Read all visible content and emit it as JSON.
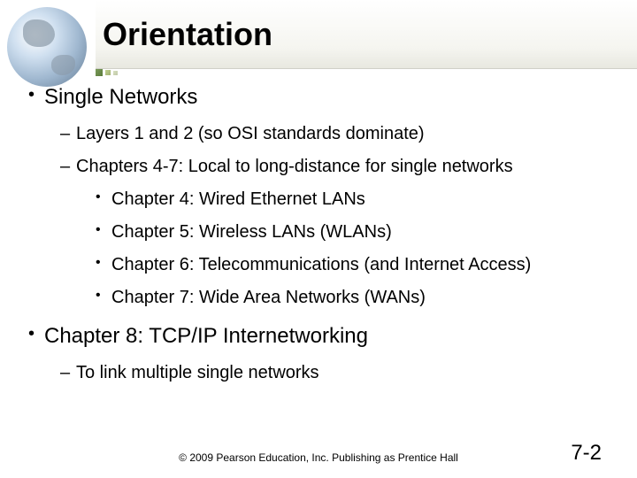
{
  "title": "Orientation",
  "bullets": {
    "l1_a": "Single Networks",
    "l2_a": "Layers 1 and 2 (so OSI standards dominate)",
    "l2_b": "Chapters 4-7: Local to long-distance for single networks",
    "l3_a": "Chapter 4: Wired Ethernet LANs",
    "l3_b": "Chapter 5: Wireless LANs (WLANs)",
    "l3_c": "Chapter 6: Telecommunications (and Internet Access)",
    "l3_d": "Chapter 7: Wide Area Networks (WANs)",
    "l1_b": "Chapter 8: TCP/IP Internetworking",
    "l2_c": "To link multiple single networks"
  },
  "footer": "© 2009 Pearson Education, Inc.  Publishing as Prentice Hall",
  "pageNumber": "7-2",
  "colors": {
    "background": "#ffffff",
    "text": "#000000",
    "titleGradientTop": "#ffffff",
    "titleGradientBottom": "#e8e8e0"
  },
  "typography": {
    "titleFontSize": 36,
    "l1FontSize": 24,
    "l2FontSize": 20,
    "l3FontSize": 20,
    "footerFontSize": 12,
    "pageNumFontSize": 24,
    "fontFamily": "Arial"
  }
}
